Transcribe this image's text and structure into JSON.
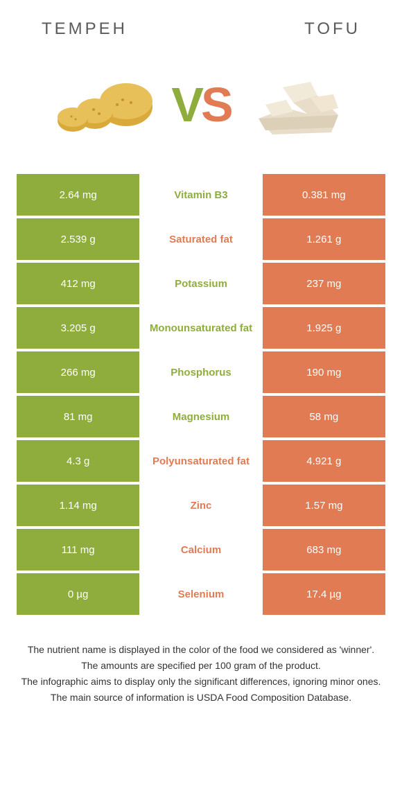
{
  "header": {
    "left": "TEMPEH",
    "right": "TOFU"
  },
  "vs": {
    "v": "V",
    "s": "S"
  },
  "colors": {
    "tempeh": "#8fad3d",
    "tofu": "#e07b53",
    "label_tempeh": "#8fad3d",
    "label_tofu": "#e07b53"
  },
  "rows": [
    {
      "left": "2.64 mg",
      "label": "Vitamin B3",
      "right": "0.381 mg",
      "winner": "tempeh"
    },
    {
      "left": "2.539 g",
      "label": "Saturated fat",
      "right": "1.261 g",
      "winner": "tofu"
    },
    {
      "left": "412 mg",
      "label": "Potassium",
      "right": "237 mg",
      "winner": "tempeh"
    },
    {
      "left": "3.205 g",
      "label": "Monounsaturated fat",
      "right": "1.925 g",
      "winner": "tempeh"
    },
    {
      "left": "266 mg",
      "label": "Phosphorus",
      "right": "190 mg",
      "winner": "tempeh"
    },
    {
      "left": "81 mg",
      "label": "Magnesium",
      "right": "58 mg",
      "winner": "tempeh"
    },
    {
      "left": "4.3 g",
      "label": "Polyunsaturated fat",
      "right": "4.921 g",
      "winner": "tofu"
    },
    {
      "left": "1.14 mg",
      "label": "Zinc",
      "right": "1.57 mg",
      "winner": "tofu"
    },
    {
      "left": "111 mg",
      "label": "Calcium",
      "right": "683 mg",
      "winner": "tofu"
    },
    {
      "left": "0 µg",
      "label": "Selenium",
      "right": "17.4 µg",
      "winner": "tofu"
    }
  ],
  "footer": {
    "l1": "The nutrient name is displayed in the color of the food we considered as 'winner'.",
    "l2": "The amounts are specified per 100 gram of the product.",
    "l3": "The infographic aims to display only the significant differences, ignoring minor ones.",
    "l4": "The main source of information is USDA Food Composition Database."
  }
}
